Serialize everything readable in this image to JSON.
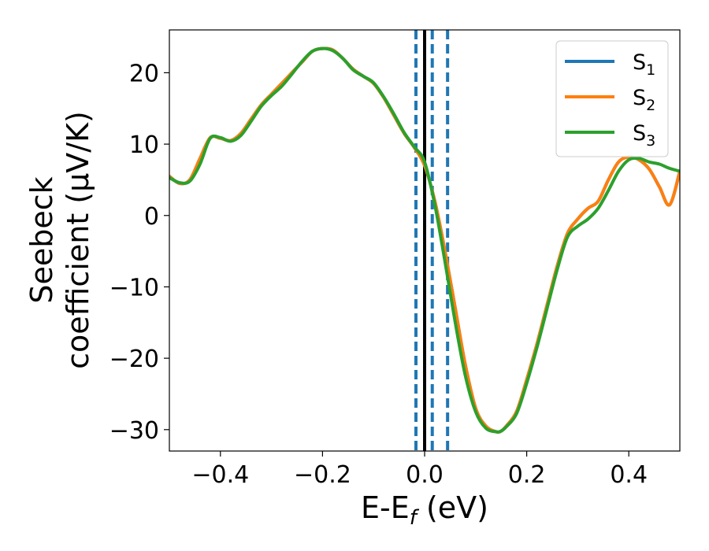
{
  "chart_data": {
    "type": "line",
    "xlabel": {
      "main": "E-E",
      "sub": "f",
      "rest": " (eV)"
    },
    "ylabel": {
      "line1": "Seebeck",
      "line2": "coefficient  (μV/K)"
    },
    "xlim": [
      -0.5,
      0.5
    ],
    "ylim": [
      -33,
      26
    ],
    "xticks": [
      -0.4,
      -0.2,
      0.0,
      0.2,
      0.4
    ],
    "xtick_labels": [
      "−0.4",
      "−0.2",
      "0.0",
      "0.2",
      "0.4"
    ],
    "yticks": [
      -30,
      -20,
      -10,
      0,
      10,
      20
    ],
    "ytick_labels": [
      "−30",
      "−20",
      "−10",
      "0",
      "10",
      "20"
    ],
    "grid": false,
    "legend_position": "top-right",
    "series": [
      {
        "name": "S",
        "sub": "1",
        "color": "#1f77b4",
        "x": [
          -0.5,
          -0.48,
          -0.46,
          -0.44,
          -0.42,
          -0.4,
          -0.38,
          -0.36,
          -0.34,
          -0.32,
          -0.3,
          -0.28,
          -0.26,
          -0.24,
          -0.22,
          -0.2,
          -0.18,
          -0.16,
          -0.14,
          -0.12,
          -0.1,
          -0.08,
          -0.06,
          -0.04,
          -0.02,
          0.0,
          0.02,
          0.04,
          0.06,
          0.08,
          0.1,
          0.12,
          0.14,
          0.15,
          0.16,
          0.18,
          0.2,
          0.22,
          0.24,
          0.26,
          0.28,
          0.3,
          0.32,
          0.34,
          0.36,
          0.38,
          0.4,
          0.42,
          0.44,
          0.46,
          0.48,
          0.5
        ],
        "y": [
          5.5,
          4.5,
          5,
          8,
          10.9,
          10.8,
          10.5,
          11.5,
          13.5,
          15.5,
          17,
          18.5,
          20,
          21.5,
          23,
          23.4,
          23.2,
          22,
          20.5,
          19.5,
          18.5,
          16.5,
          14,
          11.5,
          9.5,
          7,
          2,
          -5,
          -13,
          -21,
          -27,
          -29.5,
          -30.3,
          -30.2,
          -29.5,
          -27.5,
          -23,
          -18,
          -12.5,
          -7,
          -2.5,
          -0.5,
          1,
          2,
          5,
          7.5,
          8.2,
          7.8,
          6.5,
          4,
          1.5,
          6.2
        ]
      },
      {
        "name": "S",
        "sub": "2",
        "color": "#ff7f0e",
        "x": [
          -0.5,
          -0.48,
          -0.46,
          -0.44,
          -0.42,
          -0.4,
          -0.38,
          -0.36,
          -0.34,
          -0.32,
          -0.3,
          -0.28,
          -0.26,
          -0.24,
          -0.22,
          -0.2,
          -0.18,
          -0.16,
          -0.14,
          -0.12,
          -0.1,
          -0.08,
          -0.06,
          -0.04,
          -0.02,
          0.0,
          0.02,
          0.04,
          0.06,
          0.08,
          0.1,
          0.12,
          0.14,
          0.15,
          0.16,
          0.18,
          0.2,
          0.22,
          0.24,
          0.26,
          0.28,
          0.3,
          0.32,
          0.34,
          0.36,
          0.38,
          0.4,
          0.42,
          0.44,
          0.46,
          0.48,
          0.5
        ],
        "y": [
          5.5,
          4.5,
          5,
          8,
          10.9,
          10.8,
          10.5,
          11.5,
          13.5,
          15.5,
          17,
          18.5,
          20,
          21.5,
          23,
          23.4,
          23.2,
          22,
          20.5,
          19.5,
          18.5,
          16.5,
          14,
          11.5,
          9.5,
          7,
          2,
          -5,
          -13,
          -21,
          -27,
          -29.5,
          -30.3,
          -30.2,
          -29.5,
          -27.5,
          -23,
          -18,
          -12.5,
          -7,
          -2.5,
          -0.5,
          1,
          2,
          5,
          7.5,
          8.2,
          7.8,
          6.5,
          4,
          1.5,
          6.2
        ]
      },
      {
        "name": "S",
        "sub": "3",
        "color": "#2ca02c",
        "x": [
          -0.5,
          -0.48,
          -0.46,
          -0.44,
          -0.42,
          -0.4,
          -0.38,
          -0.36,
          -0.34,
          -0.32,
          -0.3,
          -0.28,
          -0.26,
          -0.24,
          -0.22,
          -0.2,
          -0.18,
          -0.16,
          -0.14,
          -0.12,
          -0.1,
          -0.08,
          -0.06,
          -0.04,
          -0.02,
          0.0,
          0.02,
          0.04,
          0.06,
          0.08,
          0.1,
          0.12,
          0.14,
          0.15,
          0.16,
          0.18,
          0.2,
          0.22,
          0.24,
          0.26,
          0.28,
          0.3,
          0.32,
          0.34,
          0.36,
          0.38,
          0.4,
          0.42,
          0.44,
          0.46,
          0.48,
          0.5
        ],
        "y": [
          5.3,
          4.6,
          4.8,
          7.2,
          10.8,
          10.9,
          10.4,
          11.2,
          13.2,
          15.3,
          16.8,
          18.1,
          19.8,
          21.6,
          23.0,
          23.4,
          23.1,
          22.0,
          20.4,
          19.5,
          18.6,
          16.6,
          14.2,
          11.6,
          9.6,
          7.5,
          1.5,
          -6.5,
          -15,
          -22.5,
          -27.5,
          -29.8,
          -30.3,
          -30.2,
          -29.6,
          -27.8,
          -23.5,
          -18.5,
          -13,
          -7.5,
          -3,
          -1.5,
          -0.5,
          1.0,
          3.5,
          6.2,
          7.8,
          8.0,
          7.5,
          7.2,
          6.6,
          6.2
        ]
      }
    ],
    "vlines": [
      {
        "x": 0.0,
        "color": "#000000",
        "style": "solid"
      },
      {
        "x": -0.017,
        "color": "#1f77b4",
        "style": "dashed"
      },
      {
        "x": 0.015,
        "color": "#1f77b4",
        "style": "dashed"
      },
      {
        "x": 0.045,
        "color": "#1f77b4",
        "style": "dashed"
      }
    ]
  }
}
